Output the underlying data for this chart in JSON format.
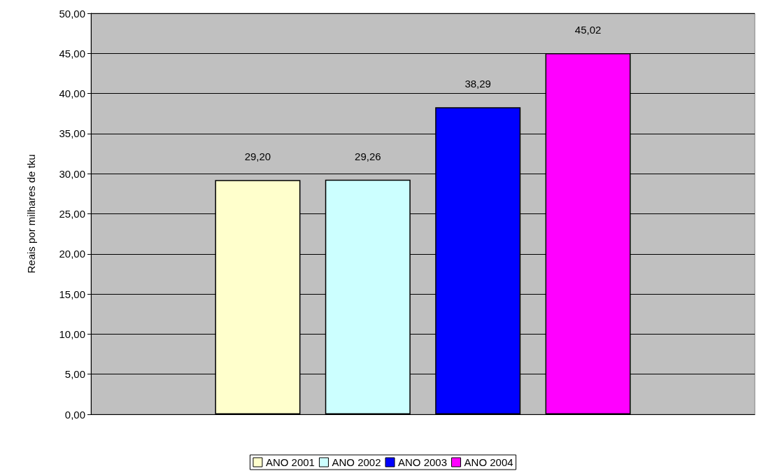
{
  "chart_data": {
    "type": "bar",
    "ylabel": "Reais por milhares de tku",
    "categories": [
      null
    ],
    "series": [
      {
        "name": "ANO 2001",
        "color": "#ffffcc",
        "values": [
          29.2
        ],
        "value_labels": [
          "29,20"
        ]
      },
      {
        "name": "ANO 2002",
        "color": "#ccffff",
        "values": [
          29.26
        ],
        "value_labels": [
          "29,26"
        ]
      },
      {
        "name": "ANO 2003",
        "color": "#0000ff",
        "values": [
          38.29
        ],
        "value_labels": [
          "38,29"
        ]
      },
      {
        "name": "ANO 2004",
        "color": "#ff00ff",
        "values": [
          45.02
        ],
        "value_labels": [
          "45,02"
        ]
      }
    ],
    "ylim": [
      0,
      50
    ],
    "yticks": [
      {
        "value": 0,
        "label": "0,00"
      },
      {
        "value": 5,
        "label": "5,00"
      },
      {
        "value": 10,
        "label": "10,00"
      },
      {
        "value": 15,
        "label": "15,00"
      },
      {
        "value": 20,
        "label": "20,00"
      },
      {
        "value": 25,
        "label": "25,00"
      },
      {
        "value": 30,
        "label": "30,00"
      },
      {
        "value": 35,
        "label": "35,00"
      },
      {
        "value": 40,
        "label": "40,00"
      },
      {
        "value": 45,
        "label": "45,00"
      },
      {
        "value": 50,
        "label": "50,00"
      }
    ],
    "grid": "y",
    "legend": "bottom"
  }
}
